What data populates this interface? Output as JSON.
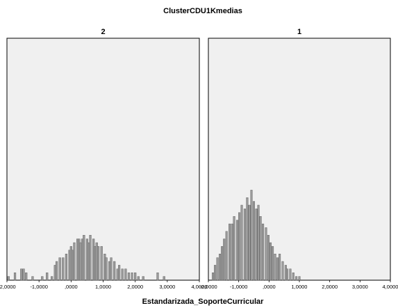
{
  "chart_data": {
    "type": "bar",
    "title": "ClusterCDU1Kmedias",
    "xlabel": "Estandarizada_SoporteCurricular",
    "ylabel": "",
    "grid": false,
    "panel_background": "#f0f0f0",
    "mark_color": "#9a9a9a",
    "x_tick_labels": [
      "-2,0000",
      "-1,0000",
      ",0000",
      "1,0000",
      "2,0000",
      "3,0000",
      "4,0000"
    ],
    "x_ticks": [
      -2,
      -1,
      0,
      1,
      2,
      3,
      4
    ],
    "xlim": [
      -2.0,
      4.0
    ],
    "panels": [
      {
        "label": "2",
        "bins": [
          [
            -1.95,
            1
          ],
          [
            -1.75,
            2
          ],
          [
            -1.55,
            3
          ],
          [
            -1.48,
            3
          ],
          [
            -1.4,
            2
          ],
          [
            -1.2,
            1
          ],
          [
            -0.9,
            1
          ],
          [
            -0.75,
            2
          ],
          [
            -0.6,
            1
          ],
          [
            -0.5,
            4
          ],
          [
            -0.45,
            5
          ],
          [
            -0.35,
            6
          ],
          [
            -0.25,
            6
          ],
          [
            -0.15,
            7
          ],
          [
            -0.05,
            8
          ],
          [
            0.0,
            9
          ],
          [
            0.05,
            8
          ],
          [
            0.1,
            10
          ],
          [
            0.2,
            11
          ],
          [
            0.25,
            11
          ],
          [
            0.3,
            10
          ],
          [
            0.35,
            11
          ],
          [
            0.4,
            12
          ],
          [
            0.5,
            11
          ],
          [
            0.55,
            10
          ],
          [
            0.6,
            12
          ],
          [
            0.7,
            11
          ],
          [
            0.75,
            9
          ],
          [
            0.8,
            10
          ],
          [
            0.85,
            9
          ],
          [
            0.95,
            9
          ],
          [
            1.05,
            7
          ],
          [
            1.1,
            6
          ],
          [
            1.2,
            5
          ],
          [
            1.25,
            6
          ],
          [
            1.35,
            5
          ],
          [
            1.45,
            3
          ],
          [
            1.5,
            4
          ],
          [
            1.6,
            3
          ],
          [
            1.7,
            3
          ],
          [
            1.8,
            2
          ],
          [
            1.9,
            2
          ],
          [
            2.0,
            2
          ],
          [
            2.1,
            1
          ],
          [
            2.25,
            1
          ],
          [
            2.7,
            2
          ],
          [
            2.9,
            1
          ]
        ]
      },
      {
        "label": "1",
        "bins": [
          [
            -1.85,
            2
          ],
          [
            -1.78,
            4
          ],
          [
            -1.7,
            6
          ],
          [
            -1.62,
            7
          ],
          [
            -1.55,
            9
          ],
          [
            -1.48,
            11
          ],
          [
            -1.4,
            13
          ],
          [
            -1.3,
            15
          ],
          [
            -1.22,
            15
          ],
          [
            -1.15,
            17
          ],
          [
            -1.05,
            16
          ],
          [
            -0.98,
            18
          ],
          [
            -0.9,
            20
          ],
          [
            -0.8,
            19
          ],
          [
            -0.72,
            22
          ],
          [
            -0.65,
            20
          ],
          [
            -0.58,
            24
          ],
          [
            -0.5,
            21
          ],
          [
            -0.42,
            19
          ],
          [
            -0.35,
            20
          ],
          [
            -0.28,
            17
          ],
          [
            -0.2,
            15
          ],
          [
            -0.1,
            14
          ],
          [
            -0.02,
            12
          ],
          [
            0.05,
            10
          ],
          [
            0.12,
            9
          ],
          [
            0.2,
            7
          ],
          [
            0.28,
            6
          ],
          [
            0.35,
            7
          ],
          [
            0.45,
            5
          ],
          [
            0.55,
            4
          ],
          [
            0.6,
            3
          ],
          [
            0.7,
            3
          ],
          [
            0.8,
            2
          ],
          [
            0.9,
            1
          ],
          [
            1.0,
            1
          ]
        ]
      }
    ]
  }
}
